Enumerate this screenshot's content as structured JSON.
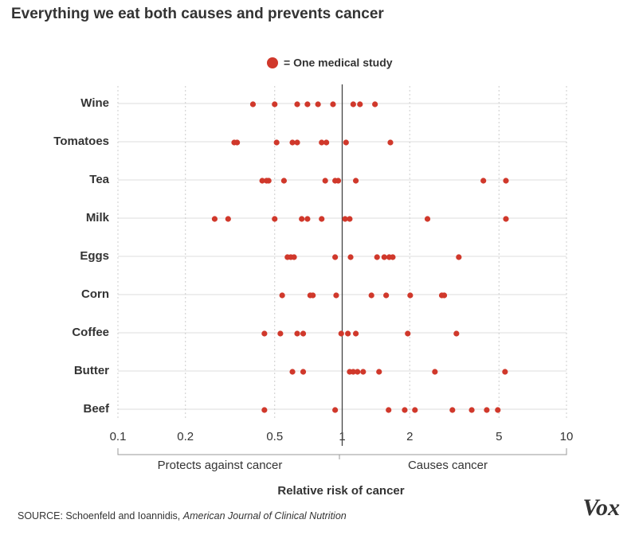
{
  "chart_data": {
    "type": "strip",
    "title": "Everything we eat both causes and prevents cancer",
    "legend_label": "= One medical study",
    "x_label": "Relative risk of cancer",
    "left_note": "Protects against cancer",
    "right_note": "Causes cancer",
    "source": "SOURCE: Schoenfeld and Ioannidis,",
    "source_journal": "American Journal of Clinical Nutrition",
    "logo": "Vox",
    "color": "#d0382b",
    "log_x": true,
    "grid": true,
    "reference": 1,
    "xlim": [
      0.1,
      10
    ],
    "xticks": [
      0.1,
      0.2,
      0.5,
      1,
      2,
      5,
      10
    ],
    "categories": [
      "Wine",
      "Tomatoes",
      "Tea",
      "Milk",
      "Eggs",
      "Corn",
      "Coffee",
      "Butter",
      "Beef"
    ],
    "values": [
      [
        0.4,
        0.5,
        0.63,
        0.7,
        0.78,
        0.91,
        1.12,
        1.2,
        1.4
      ],
      [
        0.33,
        0.34,
        0.51,
        0.6,
        0.63,
        0.81,
        0.85,
        1.04,
        1.64
      ],
      [
        0.44,
        0.46,
        0.47,
        0.55,
        0.84,
        0.93,
        0.96,
        1.15,
        4.26,
        5.37
      ],
      [
        0.27,
        0.31,
        0.5,
        0.66,
        0.7,
        0.81,
        1.03,
        1.08,
        2.4,
        5.37
      ],
      [
        0.57,
        0.59,
        0.61,
        0.93,
        1.09,
        1.43,
        1.54,
        1.62,
        1.68,
        3.31
      ],
      [
        0.54,
        0.72,
        0.74,
        0.94,
        1.35,
        1.57,
        2.01,
        2.78,
        2.85
      ],
      [
        0.45,
        0.53,
        0.63,
        0.67,
        0.99,
        1.06,
        1.15,
        1.96,
        3.23
      ],
      [
        0.6,
        0.67,
        1.08,
        1.12,
        1.17,
        1.24,
        1.46,
        2.59,
        5.32
      ],
      [
        0.45,
        0.93,
        1.61,
        1.9,
        2.11,
        3.1,
        3.78,
        4.41,
        4.94
      ]
    ]
  }
}
